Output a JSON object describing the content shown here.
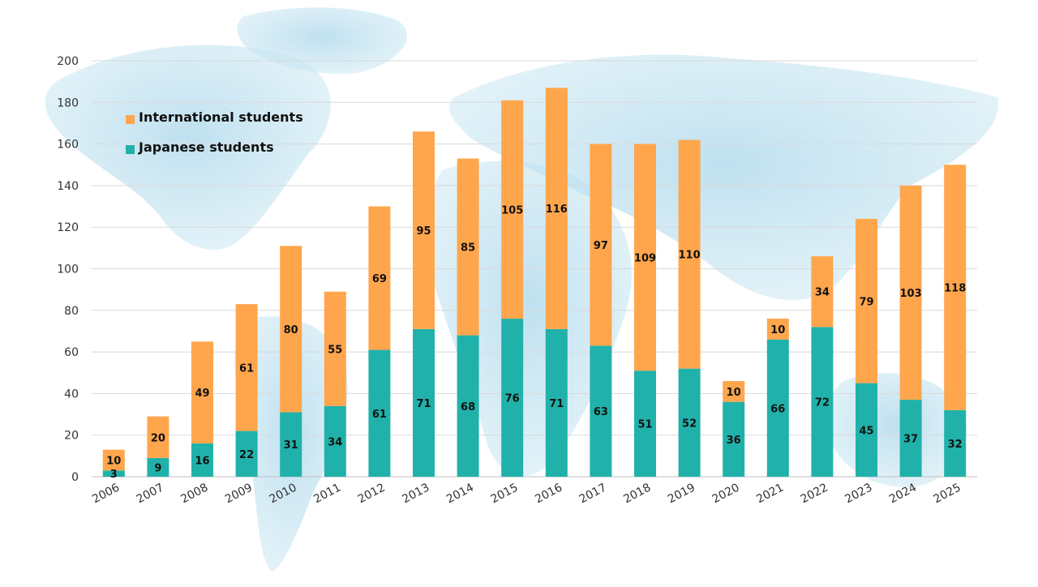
{
  "chart_data": {
    "type": "bar",
    "stacked": true,
    "title": "",
    "xlabel": "",
    "ylabel": "",
    "ylim": [
      0,
      200
    ],
    "yticks": [
      0,
      20,
      40,
      60,
      80,
      100,
      120,
      140,
      160,
      180,
      200
    ],
    "grid": true,
    "categories": [
      "2006",
      "2007",
      "2008",
      "2009",
      "2010",
      "2011",
      "2012",
      "2013",
      "2014",
      "2015",
      "2016",
      "2017",
      "2018",
      "2019",
      "2020",
      "2021",
      "2022",
      "2023",
      "2024",
      "2025"
    ],
    "series": [
      {
        "name": "Japanese students",
        "color": "#20b2aa",
        "values": [
          3,
          9,
          16,
          22,
          31,
          34,
          61,
          71,
          68,
          76,
          71,
          63,
          51,
          52,
          36,
          66,
          72,
          45,
          37,
          32
        ]
      },
      {
        "name": "International students",
        "color": "#ffa64d",
        "values": [
          10,
          20,
          49,
          61,
          80,
          55,
          69,
          95,
          85,
          105,
          116,
          97,
          109,
          110,
          10,
          10,
          34,
          79,
          103,
          118
        ]
      }
    ],
    "legend": {
      "placement": "top-left",
      "order": [
        "International students",
        "Japanese students"
      ]
    },
    "background": "world-map-watercolor"
  }
}
